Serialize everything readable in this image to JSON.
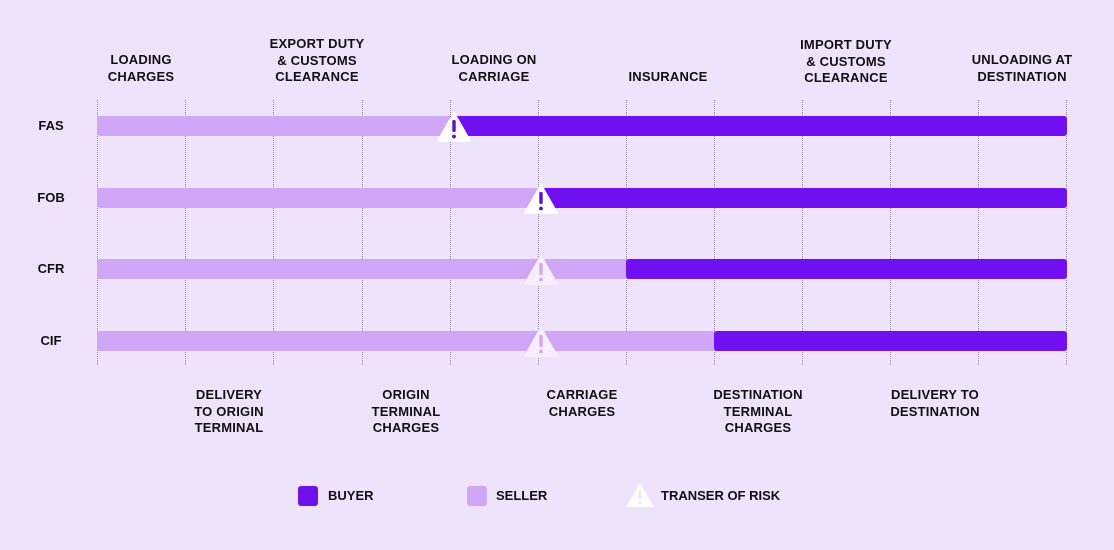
{
  "colors": {
    "background": "#efe3fb",
    "buyer": "#7010f0",
    "seller": "#d0a6f6",
    "risk_triangle": "#ffffff",
    "risk_mark": "#5f12c4"
  },
  "top_labels": [
    "LOADING\nCHARGES",
    "EXPORT DUTY\n& CUSTOMS\nCLEARANCE",
    "LOADING ON\nCARRIAGE",
    "INSURANCE",
    "IMPORT DUTY\n& CUSTOMS\nCLEARANCE",
    "UNLOADING AT\nDESTINATION"
  ],
  "bottom_labels": [
    "DELIVERY\nTO ORIGIN\nTERMINAL",
    "ORIGIN\nTERMINAL\nCHARGES",
    "CARRIAGE\nCHARGES",
    "DESTINATION\nTERMINAL\nCHARGES",
    "DELIVERY TO\nDESTINATION"
  ],
  "rows": [
    {
      "name": "FAS"
    },
    {
      "name": "FOB"
    },
    {
      "name": "CFR"
    },
    {
      "name": "CIF"
    }
  ],
  "legend": {
    "buyer": "BUYER",
    "seller": "SELLER",
    "risk": "TRANSER OF RISK"
  },
  "icons": {
    "risk": "warning-triangle-icon"
  }
}
